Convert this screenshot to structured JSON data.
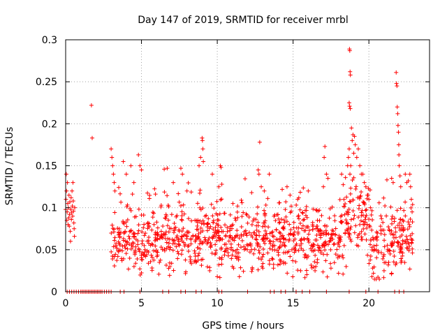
{
  "chart_data": {
    "type": "scatter",
    "title": "Day 147 of 2019, SRMTID for receiver mrbl",
    "xlabel": "GPS time / hours",
    "ylabel": "SRMTID / TECUs",
    "xlim": [
      0,
      24
    ],
    "ylim": [
      0,
      0.3
    ],
    "xticks": [
      0,
      5,
      10,
      15,
      20
    ],
    "xtick_labels": [
      "0",
      "5",
      "10",
      "15",
      "20"
    ],
    "yticks": [
      0,
      0.05,
      0.1,
      0.15,
      0.2,
      0.25,
      0.3
    ],
    "ytick_labels": [
      "0",
      "0.05",
      "0.1",
      "0.15",
      "0.2",
      "0.25",
      "0.3"
    ],
    "grid": true,
    "marker": "+",
    "color": "#ff0000",
    "series": [
      {
        "name": "SRMTID",
        "points": [
          [
            0.0,
            0.098
          ],
          [
            0.02,
            0.11
          ],
          [
            0.04,
            0.14
          ],
          [
            0.06,
            0.12
          ],
          [
            0.08,
            0.085
          ],
          [
            0.1,
            0.095
          ],
          [
            0.12,
            0.13
          ],
          [
            0.14,
            0.105
          ],
          [
            0.16,
            0.08
          ],
          [
            0.18,
            0.1
          ],
          [
            0.2,
            0.088
          ],
          [
            0.22,
            0.115
          ],
          [
            0.24,
            0.078
          ],
          [
            0.26,
            0.092
          ],
          [
            0.28,
            0.107
          ],
          [
            0.3,
            0.072
          ],
          [
            0.32,
            0.06
          ],
          [
            0.34,
            0.098
          ],
          [
            0.36,
            0.112
          ],
          [
            0.38,
            0.086
          ],
          [
            0.4,
            0.094
          ],
          [
            0.42,
            0.12
          ],
          [
            0.44,
            0.102
          ],
          [
            0.46,
            0.09
          ],
          [
            0.48,
            0.13
          ],
          [
            0.5,
            0.108
          ],
          [
            0.52,
            0.096
          ],
          [
            0.54,
            0.082
          ],
          [
            0.56,
            0.075
          ],
          [
            0.58,
            0.066
          ],
          [
            0.6,
            0.1
          ],
          [
            1.7,
            0.222
          ],
          [
            1.75,
            0.183
          ],
          [
            0.1,
            0
          ],
          [
            0.25,
            0
          ],
          [
            0.4,
            0
          ],
          [
            0.55,
            0
          ],
          [
            0.7,
            0
          ],
          [
            0.85,
            0
          ],
          [
            1.0,
            0
          ],
          [
            1.1,
            0
          ],
          [
            1.2,
            0
          ],
          [
            1.3,
            0
          ],
          [
            1.4,
            0
          ],
          [
            1.5,
            0
          ],
          [
            1.6,
            0
          ],
          [
            1.7,
            0
          ],
          [
            1.8,
            0
          ],
          [
            1.9,
            0
          ],
          [
            2.0,
            0
          ],
          [
            2.1,
            0
          ],
          [
            2.2,
            0
          ],
          [
            2.3,
            0
          ],
          [
            2.4,
            0
          ],
          [
            2.55,
            0
          ],
          [
            2.7,
            0
          ],
          [
            2.85,
            0
          ],
          [
            3.0,
            0
          ],
          [
            3.6,
            0
          ],
          [
            3.85,
            0
          ],
          [
            4.9,
            0
          ],
          [
            6.4,
            0
          ],
          [
            6.8,
            0
          ],
          [
            7.6,
            0
          ],
          [
            7.9,
            0
          ],
          [
            8.6,
            0
          ],
          [
            8.95,
            0
          ],
          [
            10.1,
            0
          ],
          [
            10.3,
            0
          ],
          [
            12.0,
            0
          ],
          [
            13.5,
            0
          ],
          [
            13.75,
            0
          ],
          [
            14.2,
            0
          ],
          [
            14.5,
            0
          ],
          [
            15.2,
            0
          ],
          [
            15.6,
            0
          ],
          [
            16.1,
            0
          ],
          [
            17.2,
            0
          ],
          [
            18.7,
            0
          ],
          [
            19.8,
            0
          ],
          [
            20.6,
            0
          ],
          [
            21.7,
            0
          ],
          [
            22.0,
            0
          ],
          [
            22.3,
            0
          ],
          [
            3.0,
            0.17
          ],
          [
            3.05,
            0.16
          ],
          [
            3.1,
            0.15
          ],
          [
            3.15,
            0.14
          ],
          [
            3.2,
            0.13
          ],
          [
            3.25,
            0.12
          ],
          [
            3.8,
            0.155
          ],
          [
            4.0,
            0.14
          ],
          [
            4.3,
            0.15
          ],
          [
            4.5,
            0.13
          ],
          [
            4.8,
            0.163
          ],
          [
            4.9,
            0.15
          ],
          [
            5.0,
            0.145
          ],
          [
            6.5,
            0.146
          ],
          [
            6.7,
            0.147
          ],
          [
            7.1,
            0.13
          ],
          [
            7.6,
            0.147
          ],
          [
            7.7,
            0.14
          ],
          [
            8.0,
            0.12
          ],
          [
            8.8,
            0.15
          ],
          [
            8.9,
            0.16
          ],
          [
            9.0,
            0.183
          ],
          [
            9.02,
            0.18
          ],
          [
            9.05,
            0.17
          ],
          [
            9.08,
            0.155
          ],
          [
            10.2,
            0.15
          ],
          [
            10.25,
            0.148
          ],
          [
            10.1,
            0.125
          ],
          [
            10.3,
            0.128
          ],
          [
            12.8,
            0.178
          ],
          [
            12.7,
            0.145
          ],
          [
            12.75,
            0.14
          ],
          [
            12.9,
            0.125
          ],
          [
            13.1,
            0.12
          ],
          [
            14.6,
            0.125
          ],
          [
            14.8,
            0.115
          ],
          [
            15.3,
            0.11
          ],
          [
            16.0,
            0.12
          ],
          [
            17.1,
            0.173
          ],
          [
            17.05,
            0.16
          ],
          [
            17.2,
            0.14
          ],
          [
            17.3,
            0.135
          ],
          [
            17.0,
            0.125
          ],
          [
            18.2,
            0.14
          ],
          [
            18.6,
            0.15
          ],
          [
            18.65,
            0.16
          ],
          [
            18.7,
            0.17
          ],
          [
            18.75,
            0.14
          ],
          [
            18.72,
            0.289
          ],
          [
            18.74,
            0.287
          ],
          [
            18.76,
            0.262
          ],
          [
            18.78,
            0.258
          ],
          [
            18.7,
            0.225
          ],
          [
            18.73,
            0.221
          ],
          [
            18.77,
            0.218
          ],
          [
            18.8,
            0.15
          ],
          [
            18.9,
            0.18
          ],
          [
            19.0,
            0.165
          ],
          [
            19.1,
            0.175
          ],
          [
            19.2,
            0.16
          ],
          [
            19.3,
            0.17
          ],
          [
            19.4,
            0.15
          ],
          [
            19.5,
            0.14
          ],
          [
            18.85,
            0.195
          ],
          [
            18.95,
            0.187
          ],
          [
            19.05,
            0.185
          ],
          [
            19.6,
            0.14
          ],
          [
            19.7,
            0.13
          ],
          [
            19.8,
            0.125
          ],
          [
            19.9,
            0.115
          ],
          [
            20.0,
            0.11
          ],
          [
            20.1,
            0.1
          ],
          [
            20.2,
            0.018
          ],
          [
            20.3,
            0.022
          ],
          [
            20.25,
            0.028
          ],
          [
            21.5,
            0.135
          ],
          [
            21.6,
            0.13
          ],
          [
            21.8,
            0.261
          ],
          [
            21.82,
            0.248
          ],
          [
            21.85,
            0.245
          ],
          [
            21.87,
            0.22
          ],
          [
            21.9,
            0.212
          ],
          [
            21.92,
            0.198
          ],
          [
            21.95,
            0.19
          ],
          [
            21.97,
            0.175
          ],
          [
            21.98,
            0.163
          ],
          [
            22.0,
            0.15
          ],
          [
            22.05,
            0.138
          ],
          [
            22.1,
            0.125
          ],
          [
            22.4,
            0.14
          ],
          [
            22.5,
            0.13
          ],
          [
            22.6,
            0.132
          ],
          [
            22.7,
            0.14
          ],
          [
            22.75,
            0.125
          ],
          [
            22.8,
            0.11
          ],
          [
            22.85,
            0.095
          ],
          [
            9.5,
            0.025
          ],
          [
            10.0,
            0.018
          ],
          [
            11.0,
            0.03
          ],
          [
            13.0,
            0.028
          ],
          [
            14.0,
            0.032
          ],
          [
            15.5,
            0.025
          ],
          [
            16.5,
            0.03
          ],
          [
            17.5,
            0.028
          ],
          [
            18.0,
            0.022
          ],
          [
            18.5,
            0.03
          ],
          [
            21.0,
            0.025
          ],
          [
            21.5,
            0.022
          ],
          [
            22.7,
            0.027
          ]
        ],
        "generated_band": {
          "x_range": [
            3.0,
            22.9
          ],
          "count": 1150,
          "seed": 147,
          "note": "dense noise band of values between ~0.02 and ~0.12, centered near 0.06"
        }
      }
    ]
  }
}
